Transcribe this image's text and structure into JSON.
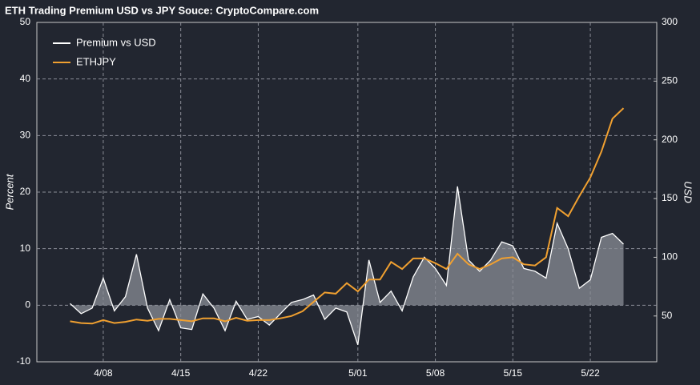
{
  "chart_data": {
    "type": "line",
    "title": "ETH Trading Premium USD vs JPY Souce: CryptoCompare.com",
    "ylabel": "Percent",
    "y2label": "USD",
    "x": [
      "4/05",
      "4/06",
      "4/07",
      "4/08",
      "4/09",
      "4/10",
      "4/11",
      "4/12",
      "4/13",
      "4/14",
      "4/15",
      "4/16",
      "4/17",
      "4/18",
      "4/19",
      "4/20",
      "4/21",
      "4/22",
      "4/23",
      "4/24",
      "4/25",
      "4/26",
      "4/27",
      "4/28",
      "4/29",
      "4/30",
      "5/01",
      "5/02",
      "5/03",
      "5/04",
      "5/05",
      "5/06",
      "5/07",
      "5/08",
      "5/09",
      "5/10",
      "5/11",
      "5/12",
      "5/13",
      "5/14",
      "5/15",
      "5/16",
      "5/17",
      "5/18",
      "5/19",
      "5/20",
      "5/21",
      "5/22",
      "5/23",
      "5/24",
      "5/25"
    ],
    "xlim": [
      "4/02",
      "5/28"
    ],
    "xticks": [
      "4/08",
      "4/15",
      "4/22",
      "5/01",
      "5/08",
      "5/15",
      "5/22"
    ],
    "ylim": [
      -10,
      50
    ],
    "yticks": [
      -10,
      0,
      10,
      20,
      30,
      40,
      50
    ],
    "y2lim": [
      11,
      300
    ],
    "y2ticks": [
      50,
      100,
      150,
      200,
      250,
      300
    ],
    "grid": true,
    "legend": "upper left",
    "series": [
      {
        "name": "Premium vs USD",
        "color": "#ffffff",
        "fill": "#8a8d96",
        "values": [
          0.3,
          -1.5,
          -0.5,
          4.8,
          -1.0,
          1.5,
          9.0,
          -0.5,
          -4.5,
          1.0,
          -4.0,
          -4.3,
          2.0,
          -0.5,
          -4.5,
          0.7,
          -2.5,
          -2.0,
          -3.5,
          -1.5,
          0.5,
          1.0,
          1.8,
          -2.5,
          -0.5,
          -1.2,
          -7.0,
          8.0,
          0.5,
          2.5,
          -1.0,
          5.0,
          8.5,
          6.5,
          3.5,
          21.0,
          8.0,
          6.0,
          8.0,
          11.2,
          10.5,
          6.5,
          6.0,
          4.8,
          14.5,
          10.0,
          3.0,
          4.5,
          12.0,
          12.7,
          10.8
        ]
      },
      {
        "name": "ETHJPY",
        "color": "#f0a030",
        "axis": "y2",
        "values": [
          45.5,
          44,
          43.5,
          46.5,
          44,
          45,
          47,
          46,
          47.5,
          47.5,
          46.5,
          45.5,
          48,
          48,
          45.5,
          48.5,
          46,
          46.5,
          46.5,
          48,
          50,
          54,
          62,
          70,
          69,
          78,
          71,
          81,
          81,
          96,
          90,
          99,
          99,
          95,
          90,
          103,
          94,
          90,
          94,
          99,
          100,
          94,
          93,
          100,
          142,
          135,
          152,
          168,
          190,
          218,
          227
        ]
      }
    ]
  }
}
